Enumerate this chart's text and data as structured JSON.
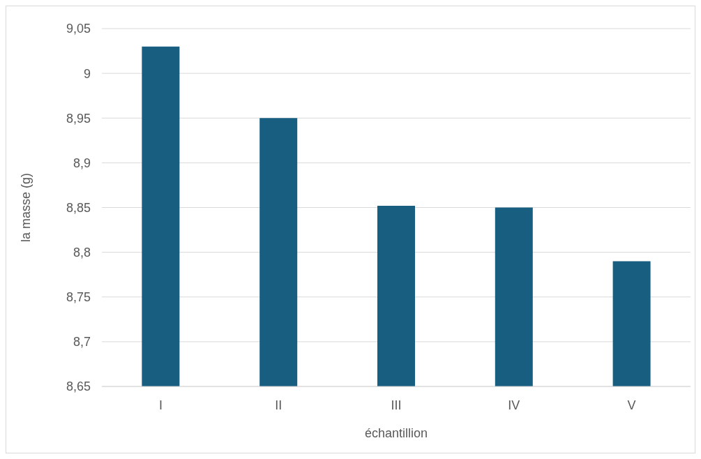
{
  "chart_data": {
    "type": "bar",
    "xlabel": "échantillion",
    "ylabel": "la masse (g)",
    "categories": [
      "I",
      "II",
      "III",
      "IV",
      "V"
    ],
    "values": [
      9.03,
      8.95,
      8.852,
      8.85,
      8.79
    ],
    "color": "#175e81",
    "ylim": [
      8.65,
      9.05
    ],
    "yticks": [
      {
        "value": 8.65,
        "label": "8,65"
      },
      {
        "value": 8.7,
        "label": "8,7"
      },
      {
        "value": 8.75,
        "label": "8,75"
      },
      {
        "value": 8.8,
        "label": "8,8"
      },
      {
        "value": 8.85,
        "label": "8,85"
      },
      {
        "value": 8.9,
        "label": "8,9"
      },
      {
        "value": 8.95,
        "label": "8,95"
      },
      {
        "value": 9,
        "label": "9"
      },
      {
        "value": 9.05,
        "label": "9,05"
      }
    ],
    "grid": "y"
  }
}
